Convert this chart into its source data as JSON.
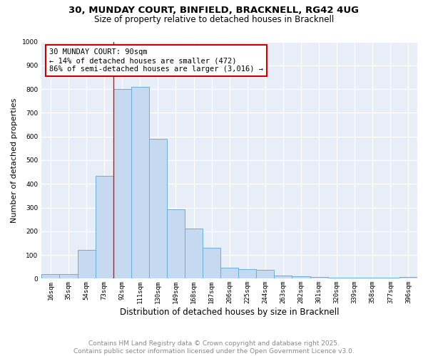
{
  "title_line1": "30, MUNDAY COURT, BINFIELD, BRACKNELL, RG42 4UG",
  "title_line2": "Size of property relative to detached houses in Bracknell",
  "xlabel": "Distribution of detached houses by size in Bracknell",
  "ylabel": "Number of detached properties",
  "categories": [
    "16sqm",
    "35sqm",
    "54sqm",
    "73sqm",
    "92sqm",
    "111sqm",
    "130sqm",
    "149sqm",
    "168sqm",
    "187sqm",
    "206sqm",
    "225sqm",
    "244sqm",
    "263sqm",
    "282sqm",
    "301sqm",
    "320sqm",
    "339sqm",
    "358sqm",
    "377sqm",
    "396sqm"
  ],
  "values": [
    18,
    18,
    120,
    435,
    800,
    810,
    590,
    293,
    213,
    130,
    45,
    40,
    38,
    13,
    9,
    8,
    5,
    5,
    3,
    3,
    8
  ],
  "bar_color": "#c5d9f0",
  "bar_edge_color": "#6baed6",
  "property_line_index": 4,
  "annotation_title": "30 MUNDAY COURT: 90sqm",
  "annotation_line2": "← 14% of detached houses are smaller (472)",
  "annotation_line3": "86% of semi-detached houses are larger (3,016) →",
  "annotation_box_color": "#cc0000",
  "ylim": [
    0,
    1000
  ],
  "yticks": [
    0,
    100,
    200,
    300,
    400,
    500,
    600,
    700,
    800,
    900,
    1000
  ],
  "bg_color": "#e8eef8",
  "footer_line1": "Contains HM Land Registry data © Crown copyright and database right 2025.",
  "footer_line2": "Contains public sector information licensed under the Open Government Licence v3.0.",
  "grid_color": "#ffffff",
  "title_fontsize": 9.5,
  "subtitle_fontsize": 8.5,
  "xlabel_fontsize": 8.5,
  "ylabel_fontsize": 8,
  "tick_fontsize": 6.5,
  "annotation_fontsize": 7.5,
  "footer_fontsize": 6.5
}
